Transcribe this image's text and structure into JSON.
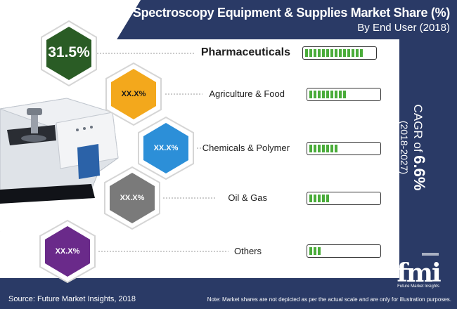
{
  "title": "Spectroscopy Equipment & Supplies Market Share (%)",
  "subtitle": "By End User (2018)",
  "colors": {
    "navy": "#2a3a66",
    "pharma": "#2a5c25",
    "agri": "#f3a81c",
    "chem": "#2c8fd8",
    "oil": "#7a7a7a",
    "others": "#6a2a8a",
    "bar": "#4aac3a"
  },
  "segments": [
    {
      "label": "Pharmaceuticals",
      "value_text": "31.5%"
    },
    {
      "label": "Agriculture & Food",
      "value_text": "XX.X%"
    },
    {
      "label": "Chemicals & Polymer",
      "value_text": "XX.X%"
    },
    {
      "label": "Oil & Gas",
      "value_text": "XX.X%"
    },
    {
      "label": "Others",
      "value_text": "XX.X%"
    }
  ],
  "cagr": {
    "prefix": "CAGR of ",
    "value": "6.6%",
    "period": "(2018-2027)"
  },
  "source": "Source: Future Market Insights, 2018",
  "note": "Note: Market shares are not depicted as per the actual scale and are only for illustration purposes.",
  "logo": {
    "name": "fmi",
    "tagline": "Future Market Insights"
  },
  "chart_data": {
    "type": "bar",
    "title": "Spectroscopy Equipment & Supplies Market Share (%)",
    "subtitle": "By End User (2018)",
    "categories": [
      "Pharmaceuticals",
      "Agriculture & Food",
      "Chemicals & Polymer",
      "Oil & Gas",
      "Others"
    ],
    "value_labels": [
      "31.5%",
      "XX.X%",
      "XX.X%",
      "XX.X%",
      "XX.X%"
    ],
    "bar_fill_fraction": [
      0.88,
      0.58,
      0.46,
      0.31,
      0.17
    ],
    "cagr": "6.6%",
    "cagr_period": "(2018-2027)"
  }
}
